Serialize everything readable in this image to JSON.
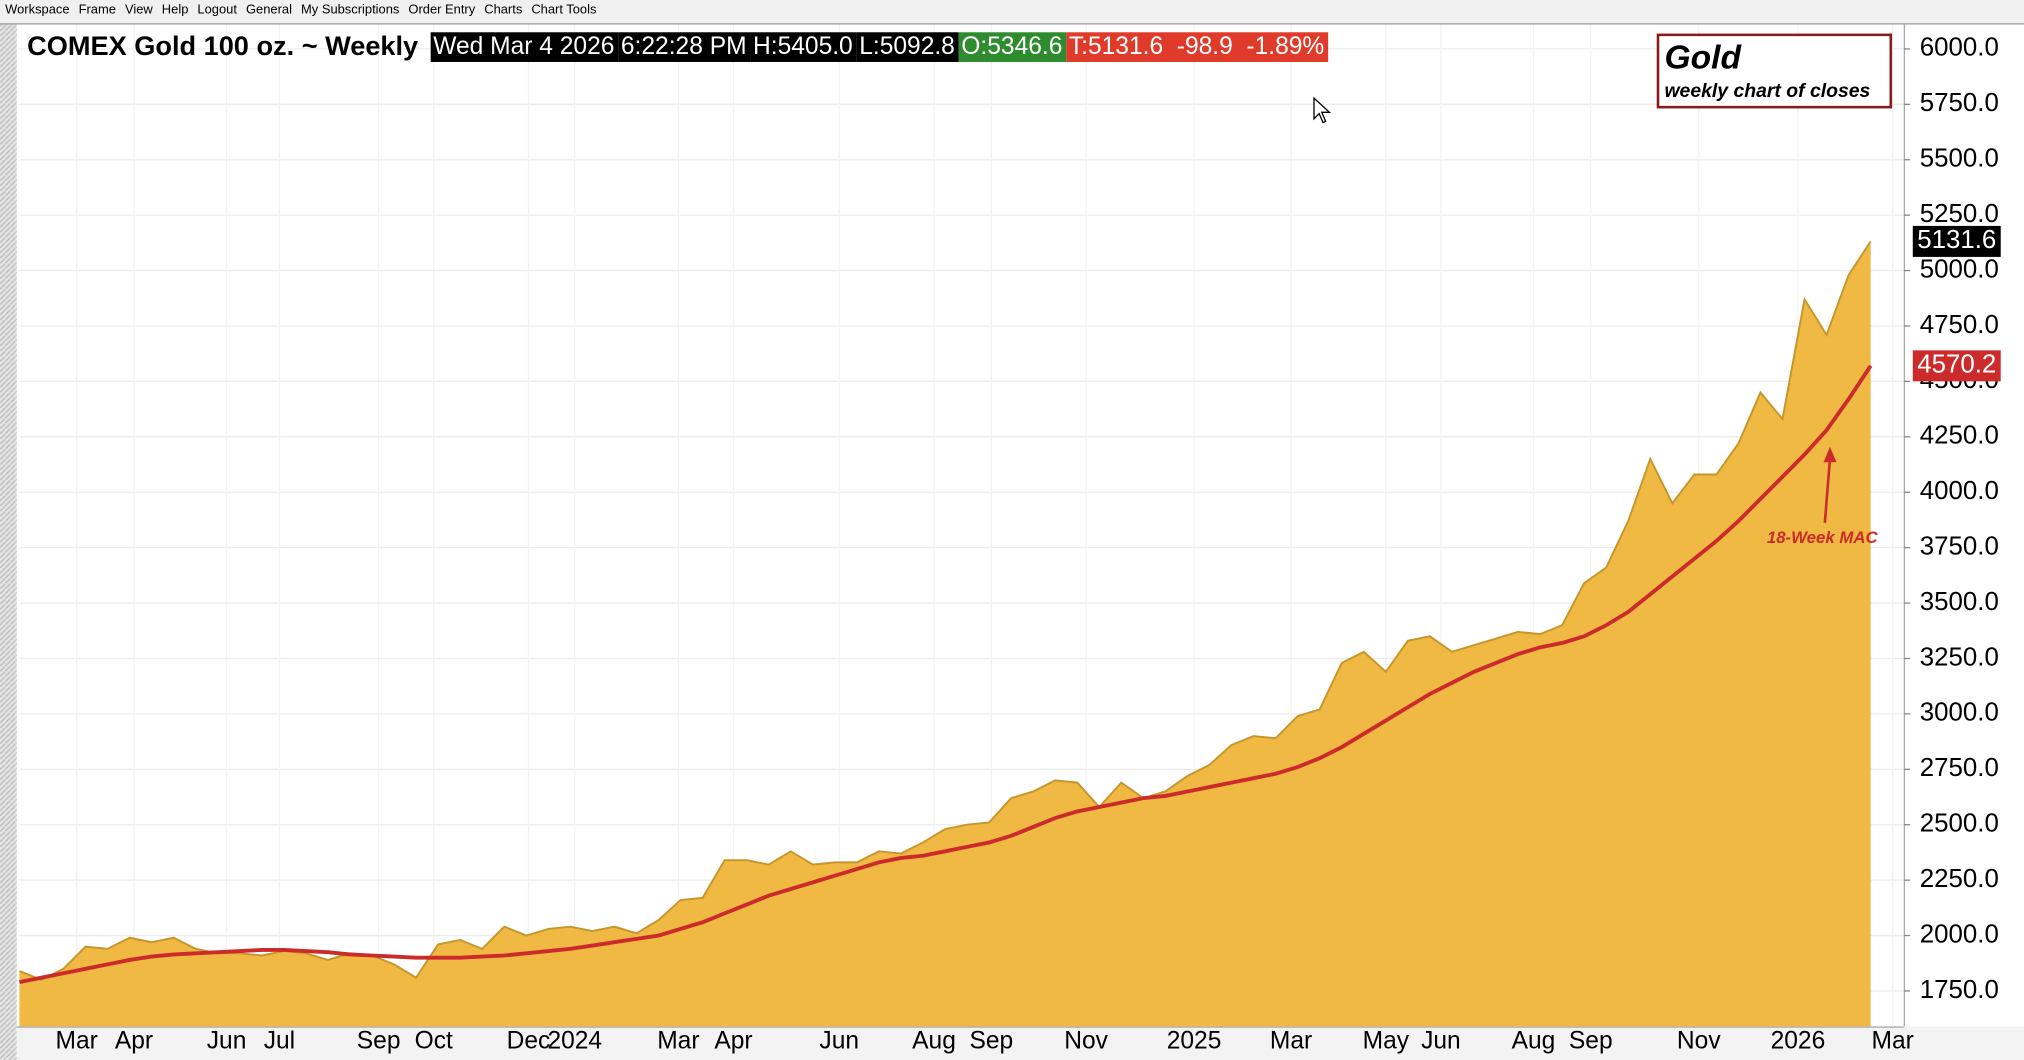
{
  "menu": [
    "Workspace",
    "Frame",
    "View",
    "Help",
    "Logout",
    "General",
    "My Subscriptions",
    "Order Entry",
    "Charts",
    "Chart Tools"
  ],
  "quote": {
    "symbol": "COMEX Gold 100 oz. ~ Weekly",
    "date": "Wed Mar 4 2026",
    "time": "6:22:28 PM",
    "high": "H:5405.0",
    "low": "L:5092.8",
    "open": "O:5346.6",
    "last": "T:5131.6  -98.9  -1.89%"
  },
  "chart_data": {
    "type": "area",
    "title": "Gold",
    "subtitle": "weekly chart of closes",
    "annotation": "18-Week MAC",
    "series": [
      {
        "name": "Close",
        "color": "#f0b944",
        "values": [
          1840,
          1800,
          1850,
          1950,
          1940,
          1990,
          1970,
          1990,
          1940,
          1920,
          1920,
          1910,
          1930,
          1920,
          1890,
          1920,
          1910,
          1870,
          1810,
          1960,
          1980,
          1940,
          2040,
          2000,
          2030,
          2040,
          2020,
          2040,
          2010,
          2070,
          2160,
          2170,
          2340,
          2340,
          2320,
          2380,
          2320,
          2330,
          2330,
          2380,
          2370,
          2420,
          2480,
          2500,
          2510,
          2620,
          2650,
          2700,
          2690,
          2580,
          2690,
          2620,
          2650,
          2720,
          2770,
          2860,
          2900,
          2890,
          2990,
          3020,
          3230,
          3280,
          3190,
          3330,
          3350,
          3280,
          3310,
          3340,
          3370,
          3360,
          3400,
          3590,
          3660,
          3870,
          4150,
          3950,
          4080,
          4080,
          4220,
          4450,
          4330,
          4870,
          4710,
          4980,
          5131.6
        ]
      },
      {
        "name": "18-Week MAC",
        "color": "#cc2b2b",
        "values": [
          1790,
          1810,
          1830,
          1850,
          1870,
          1890,
          1905,
          1915,
          1920,
          1925,
          1930,
          1935,
          1935,
          1930,
          1925,
          1915,
          1910,
          1905,
          1900,
          1900,
          1900,
          1905,
          1910,
          1920,
          1930,
          1940,
          1955,
          1970,
          1985,
          2000,
          2030,
          2060,
          2100,
          2140,
          2180,
          2210,
          2240,
          2270,
          2300,
          2330,
          2350,
          2360,
          2380,
          2400,
          2420,
          2450,
          2490,
          2530,
          2560,
          2580,
          2600,
          2620,
          2630,
          2650,
          2670,
          2690,
          2710,
          2730,
          2760,
          2800,
          2850,
          2910,
          2970,
          3030,
          3090,
          3140,
          3190,
          3230,
          3270,
          3300,
          3320,
          3350,
          3400,
          3460,
          3540,
          3620,
          3700,
          3780,
          3870,
          3970,
          4070,
          4170,
          4280,
          4420,
          4570.2
        ]
      }
    ],
    "xlim": [
      0,
      85.5
    ],
    "xticks": [
      {
        "value": 2.6,
        "label": "Mar"
      },
      {
        "value": 5.2,
        "label": "Apr"
      },
      {
        "value": 9.4,
        "label": "Jun"
      },
      {
        "value": 11.8,
        "label": "Jul"
      },
      {
        "value": 16.3,
        "label": "Sep"
      },
      {
        "value": 18.8,
        "label": "Oct"
      },
      {
        "value": 23.1,
        "label": "Dec"
      },
      {
        "value": 25.2,
        "label": "2024"
      },
      {
        "value": 29.9,
        "label": "Mar"
      },
      {
        "value": 32.4,
        "label": "Apr"
      },
      {
        "value": 37.2,
        "label": "Jun"
      },
      {
        "value": 41.5,
        "label": "Aug"
      },
      {
        "value": 44.1,
        "label": "Sep"
      },
      {
        "value": 48.4,
        "label": "Nov"
      },
      {
        "value": 53.3,
        "label": "2025"
      },
      {
        "value": 57.7,
        "label": "Mar"
      },
      {
        "value": 62.0,
        "label": "May"
      },
      {
        "value": 64.5,
        "label": "Jun"
      },
      {
        "value": 68.7,
        "label": "Aug"
      },
      {
        "value": 71.3,
        "label": "Sep"
      },
      {
        "value": 76.2,
        "label": "Nov"
      },
      {
        "value": 80.7,
        "label": "2026"
      },
      {
        "value": 85.0,
        "label": "Mar"
      }
    ],
    "ylim": [
      1590,
      6110
    ],
    "yticks": [
      {
        "value": 1750,
        "label": "1750.0"
      },
      {
        "value": 2000,
        "label": "2000.0"
      },
      {
        "value": 2250,
        "label": "2250.0"
      },
      {
        "value": 2500,
        "label": "2500.0"
      },
      {
        "value": 2750,
        "label": "2750.0"
      },
      {
        "value": 3000,
        "label": "3000.0"
      },
      {
        "value": 3250,
        "label": "3250.0"
      },
      {
        "value": 3500,
        "label": "3500.0"
      },
      {
        "value": 3750,
        "label": "3750.0"
      },
      {
        "value": 4000,
        "label": "4000.0"
      },
      {
        "value": 4250,
        "label": "4250.0"
      },
      {
        "value": 4500,
        "label": "4500.0"
      },
      {
        "value": 4750,
        "label": "4750.0"
      },
      {
        "value": 5000,
        "label": "5000.0"
      },
      {
        "value": 5250,
        "label": "5250.0"
      },
      {
        "value": 5500,
        "label": "5500.0"
      },
      {
        "value": 5750,
        "label": "5750.0"
      },
      {
        "value": 6000,
        "label": "6000.0"
      }
    ],
    "grid": true
  }
}
